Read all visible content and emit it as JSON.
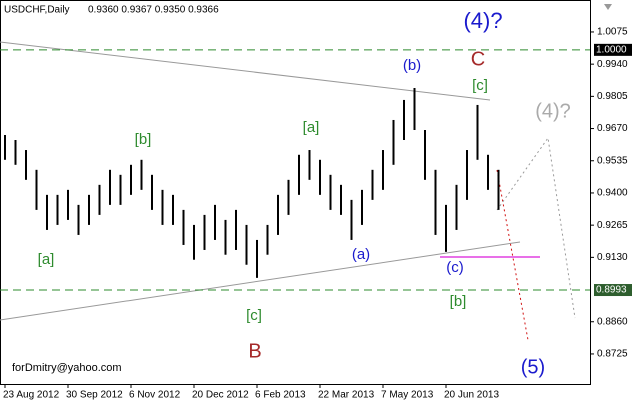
{
  "chart_data": {
    "type": "hlbar",
    "symbol": "USDCHF,Daily",
    "quote": "0.9360 0.9367 0.9350 0.9366",
    "signature": "forDmitry@yahoo.com",
    "color": "#000000",
    "categories": [
      "23 Aug 2012",
      null,
      null,
      null,
      null,
      null,
      "30 Sep 2012",
      null,
      null,
      null,
      null,
      null,
      "6 Nov 2012",
      null,
      null,
      null,
      null,
      null,
      "20 Dec 2012",
      null,
      null,
      null,
      null,
      null,
      "6 Feb 2013",
      null,
      null,
      null,
      null,
      null,
      "22 Mar 2013",
      null,
      null,
      null,
      null,
      null,
      "7 May 2013",
      null,
      null,
      null,
      null,
      null,
      "20 Jun 2013",
      null,
      null,
      null,
      null,
      null
    ],
    "high": [
      0.9643,
      0.9622,
      0.958,
      0.9497,
      0.9392,
      0.9392,
      0.9413,
      0.935,
      0.9392,
      0.9434,
      0.9497,
      0.9476,
      0.9518,
      0.9539,
      0.9476,
      0.9413,
      0.9392,
      0.9329,
      0.9266,
      0.9308,
      0.935,
      0.9287,
      0.9329,
      0.9266,
      0.9203,
      0.9266,
      0.9392,
      0.9455,
      0.956,
      0.958,
      0.9539,
      0.9476,
      0.9434,
      0.9371,
      0.9413,
      0.9497,
      0.958,
      0.9706,
      0.979,
      0.984,
      0.9664,
      0.9497,
      0.935,
      0.9434,
      0.958,
      0.9769,
      0.956,
      0.9497
    ],
    "low": [
      0.9539,
      0.9518,
      0.9455,
      0.9329,
      0.9245,
      0.9266,
      0.9287,
      0.9224,
      0.9266,
      0.9308,
      0.935,
      0.935,
      0.9392,
      0.9413,
      0.9329,
      0.9266,
      0.9266,
      0.9182,
      0.912,
      0.9161,
      0.9203,
      0.9141,
      0.9161,
      0.9099,
      0.9044,
      0.9141,
      0.9224,
      0.9308,
      0.9392,
      0.9455,
      0.9392,
      0.9329,
      0.9308,
      0.9203,
      0.9266,
      0.9371,
      0.9413,
      0.9518,
      0.9622,
      0.9664,
      0.9455,
      0.9224,
      0.9153,
      0.9245,
      0.9371,
      0.9539,
      0.9413,
      0.9329
    ],
    "ylim": [
      0.8599,
      1.0209
    ],
    "yticks": [
      1.0075,
      {
        "value": 0.994,
        "label": "0.9940"
      },
      0.9805,
      {
        "value": 0.967,
        "label": "0.9670"
      },
      0.9535,
      {
        "value": 0.94,
        "label": "0.9400"
      },
      0.9265,
      {
        "value": 0.913,
        "label": "0.9130"
      },
      {
        "value": 0.886,
        "label": "0.8860"
      },
      0.8725
    ],
    "hlines": [
      {
        "value": 1,
        "label": "1.0000"
      },
      {
        "value": 0.8993,
        "label": "0.8993"
      }
    ],
    "hline_color": "#2e8b2e",
    "annotations": [
      {
        "text": "(4)?",
        "color": "#1a1acd"
      },
      {
        "text": "C",
        "color": "#a52a2a"
      },
      {
        "text": "[c]",
        "color": "#2e8b2e"
      },
      {
        "text": "(b)",
        "color": "#1a1acd"
      },
      {
        "text": "[a]",
        "color": "#2e8b2e"
      },
      {
        "text": "[b]",
        "color": "#2e8b2e"
      },
      {
        "text": "(4)?",
        "color": "#aaaaaa"
      },
      {
        "text": "(a)",
        "color": "#1a1acd"
      },
      {
        "text": "(c)",
        "color": "#1a1acd"
      },
      {
        "text": "[a]",
        "color": "#2e8b2e"
      },
      {
        "text": "[b]",
        "color": "#2e8b2e"
      },
      {
        "text": "[c]",
        "color": "#2e8b2e"
      },
      {
        "text": "B",
        "color": "#a52a2a"
      },
      {
        "text": "(5)",
        "color": "#1a1acd"
      }
    ]
  }
}
